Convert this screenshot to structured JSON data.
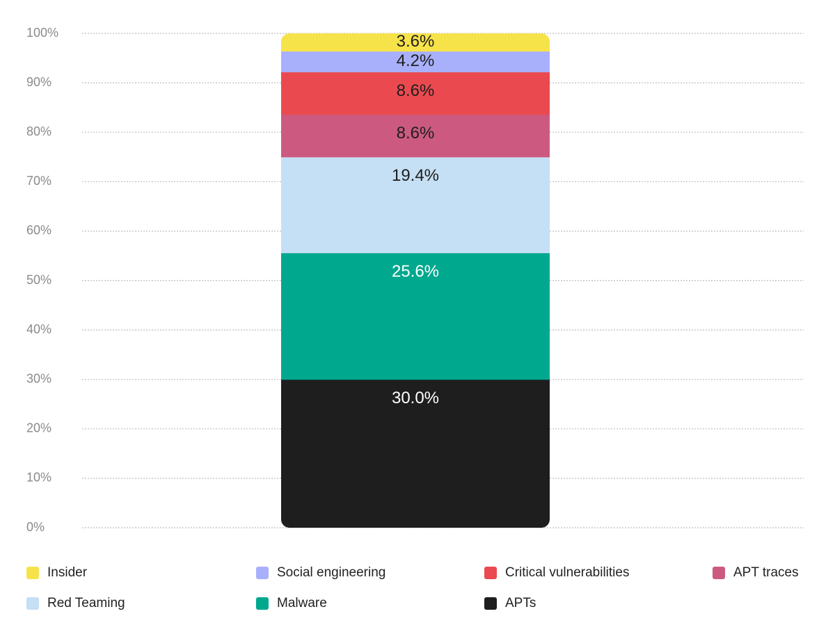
{
  "chart_data": {
    "type": "bar",
    "stacked": true,
    "categories": [
      ""
    ],
    "ylim": [
      0,
      100
    ],
    "y_ticks": [
      "0%",
      "10%",
      "20%",
      "30%",
      "40%",
      "50%",
      "60%",
      "70%",
      "80%",
      "90%",
      "100%"
    ],
    "grid": true,
    "legend_position": "bottom",
    "series": [
      {
        "name": "APTs",
        "values": [
          30.0
        ],
        "label": "30.0%",
        "color": "#1e1e1e",
        "text_color": "#ffffff"
      },
      {
        "name": "Malware",
        "values": [
          25.6
        ],
        "label": "25.6%",
        "color": "#00a88e",
        "text_color": "#ffffff"
      },
      {
        "name": "Red Teaming",
        "values": [
          19.4
        ],
        "label": "19.4%",
        "color": "#c5dff4",
        "text_color": "#1e1e1e"
      },
      {
        "name": "APT traces",
        "values": [
          8.6
        ],
        "label": "8.6%",
        "color": "#cc5a80",
        "text_color": "#1e1e1e"
      },
      {
        "name": "Critical vulnerabilities",
        "values": [
          8.6
        ],
        "label": "8.6%",
        "color": "#ea4a4f",
        "text_color": "#1e1e1e"
      },
      {
        "name": "Social engineering",
        "values": [
          4.2
        ],
        "label": "4.2%",
        "color": "#a9b0fb",
        "text_color": "#1e1e1e"
      },
      {
        "name": "Insider",
        "values": [
          3.6
        ],
        "label": "3.6%",
        "color": "#f6e34a",
        "text_color": "#1e1e1e"
      }
    ]
  },
  "legend": {
    "items": [
      {
        "label": "Insider",
        "color": "#f6e34a"
      },
      {
        "label": "Social engineering",
        "color": "#a9b0fb"
      },
      {
        "label": "Critical vulnerabilities",
        "color": "#ea4a4f"
      },
      {
        "label": "APT traces",
        "color": "#cc5a80"
      },
      {
        "label": "Red Teaming",
        "color": "#c5dff4"
      },
      {
        "label": "Malware",
        "color": "#00a88e"
      },
      {
        "label": "APTs",
        "color": "#1e1e1e"
      }
    ]
  }
}
